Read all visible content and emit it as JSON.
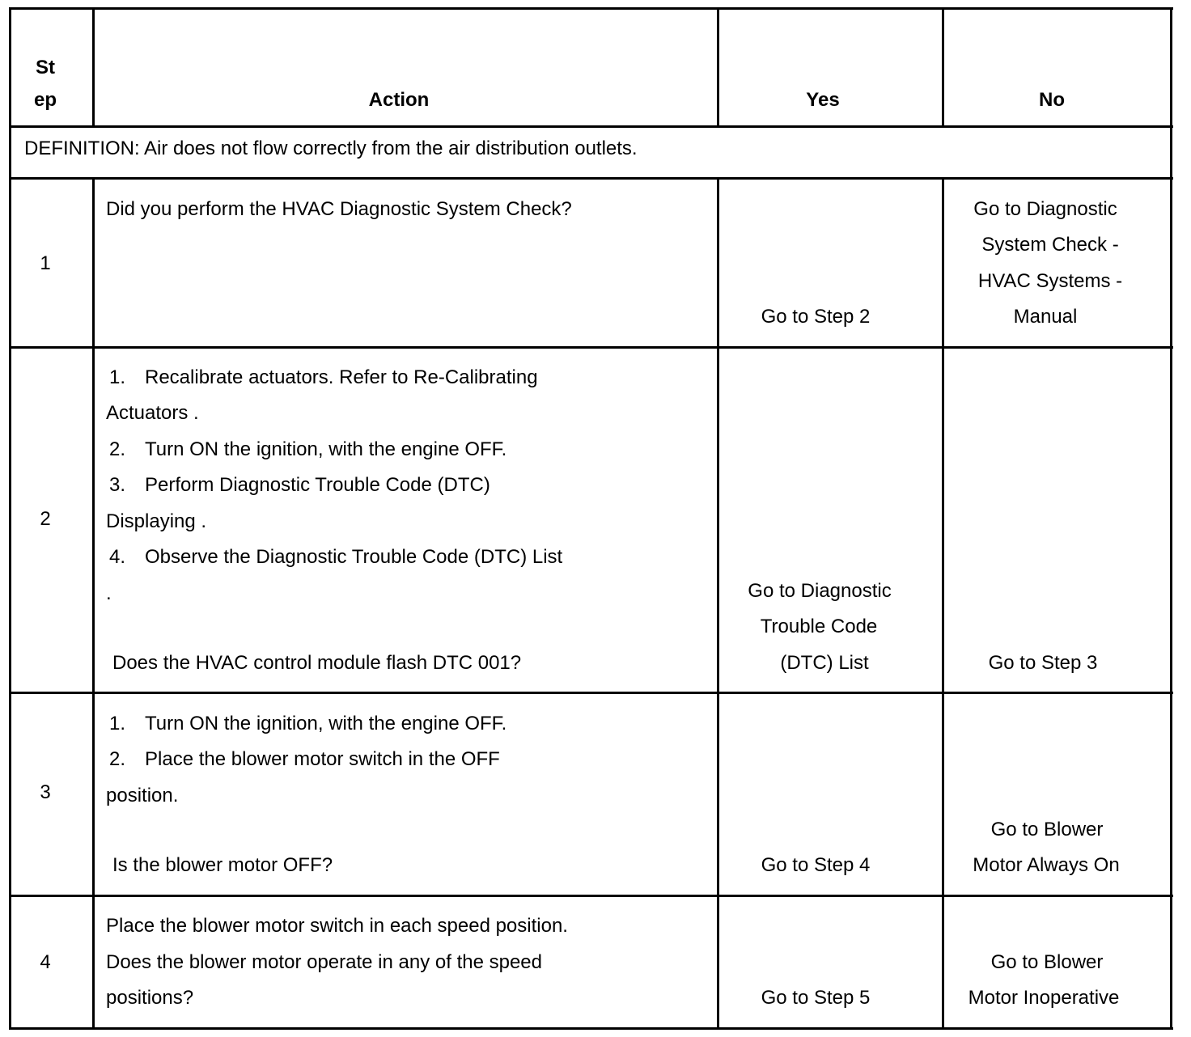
{
  "header": {
    "step_lines": [
      "St",
      "ep"
    ],
    "action": "Action",
    "yes": "Yes",
    "no": "No"
  },
  "definition": "DEFINITION: Air does not flow correctly from the air distribution outlets.",
  "rows": [
    {
      "step": "1",
      "action": [
        "Did you perform the HVAC Diagnostic System Check?"
      ],
      "yes": [
        "Go to Step 2"
      ],
      "no": [
        "Go to Diagnostic",
        "System Check -",
        "HVAC Systems -",
        "Manual"
      ]
    },
    {
      "step": "2",
      "action_items": [
        {
          "num": "1.",
          "text": "Recalibrate actuators. Refer to Re-Calibrating",
          "cont": "Actuators ."
        },
        {
          "num": "2.",
          "text": "Turn ON the ignition, with the engine OFF."
        },
        {
          "num": "3.",
          "text": "Perform Diagnostic Trouble Code (DTC)",
          "cont": "Displaying ."
        },
        {
          "num": "4.",
          "text": "Observe the Diagnostic Trouble Code (DTC) List",
          "cont": "."
        }
      ],
      "question": "Does the HVAC control module flash DTC 001?",
      "yes": [
        "Go to Diagnostic",
        "Trouble Code",
        "(DTC) List"
      ],
      "no": [
        "Go to Step 3"
      ]
    },
    {
      "step": "3",
      "action_items": [
        {
          "num": "1.",
          "text": "Turn ON the ignition, with the engine OFF."
        },
        {
          "num": "2.",
          "text": "Place the blower motor switch in the OFF",
          "cont": "position."
        }
      ],
      "question": "Is the blower motor OFF?",
      "yes": [
        "Go to Step 4"
      ],
      "no": [
        "Go to Blower",
        "Motor Always On"
      ]
    },
    {
      "step": "4",
      "action": [
        "Place the blower motor switch in each speed position.",
        "Does the blower motor operate in any of the speed",
        "positions?"
      ],
      "yes": [
        "Go to Step 5"
      ],
      "no": [
        "Go to Blower",
        "Motor Inoperative"
      ]
    }
  ]
}
